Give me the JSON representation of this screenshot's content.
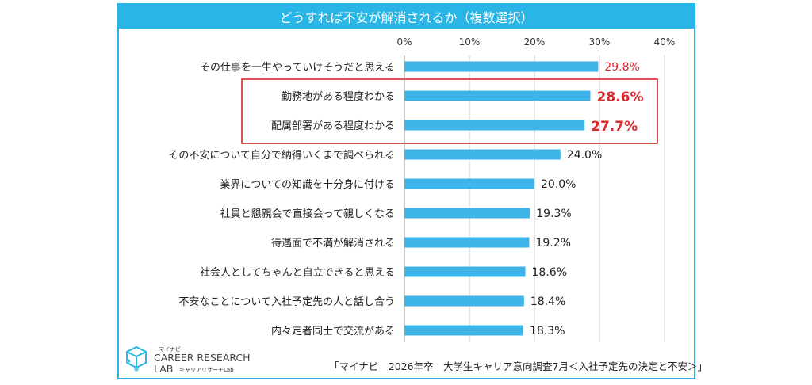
{
  "title": "どうすれば不安が解消されるか（複数選択）",
  "colors": {
    "accent": "#29b6e6",
    "bar": "#3db5e8",
    "highlight": "#d6282d",
    "grid": "#cccccc"
  },
  "chart_data": {
    "type": "bar",
    "orientation": "horizontal",
    "title": "どうすれば不安が解消されるか（複数選択）",
    "categories": [
      "その仕事を一生やっていけそうだと思える",
      "勤務地がある程度わかる",
      "配属部署がある程度わかる",
      "その不安について自分で納得いくまで調べられる",
      "業界についての知識を十分身に付ける",
      "社員と懇親会で直接会って親しくなる",
      "待遇面で不満が解消される",
      "社会人としてちゃんと自立できると思える",
      "不安なことについて入社予定先の人と話し合う",
      "内々定者同士で交流がある"
    ],
    "values": [
      29.8,
      28.6,
      27.7,
      24.0,
      20.0,
      19.3,
      19.2,
      18.6,
      18.4,
      18.3
    ],
    "value_labels": [
      "29.8%",
      "28.6%",
      "27.7%",
      "24.0%",
      "20.0%",
      "19.3%",
      "19.2%",
      "18.6%",
      "18.4%",
      "18.3%"
    ],
    "highlight_colored_labels": [
      0,
      1,
      2
    ],
    "highlight_box_rows": [
      1,
      2
    ],
    "xlim": [
      0,
      40
    ],
    "ticks": [
      0,
      10,
      20,
      30,
      40
    ],
    "tick_labels": [
      "0%",
      "10%",
      "20%",
      "30%",
      "40%"
    ],
    "grid": true,
    "legend": "none"
  },
  "logo": {
    "brand": "マイナビ",
    "name_line1": "CAREER RESEARCH",
    "name_line2": "LAB",
    "sub": "キャリアリサーチLab"
  },
  "source": "「マイナビ　2026年卒　大学生キャリア意向調査7月＜入社予定先の決定と不安＞」"
}
